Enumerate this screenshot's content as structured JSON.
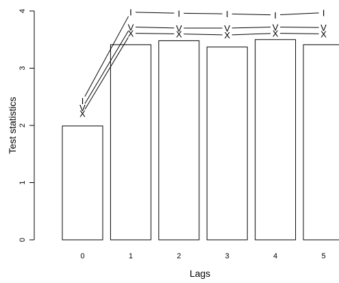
{
  "chart_data": {
    "type": "bar",
    "title": "",
    "xlabel": "Lags",
    "ylabel": "Test statistics",
    "categories": [
      "0",
      "1",
      "2",
      "3",
      "4",
      "5"
    ],
    "values": [
      1.99,
      3.41,
      3.48,
      3.37,
      3.5,
      3.41
    ],
    "ylim": [
      0,
      4
    ],
    "yticks": [
      "0",
      "1",
      "2",
      "3",
      "4"
    ],
    "grid": false,
    "overlay_series": [
      {
        "marker": "I",
        "values": [
          2.43,
          3.98,
          3.96,
          3.95,
          3.93,
          3.97
        ]
      },
      {
        "marker": "V",
        "values": [
          2.31,
          3.72,
          3.7,
          3.7,
          3.72,
          3.71
        ]
      },
      {
        "marker": "X",
        "values": [
          2.21,
          3.61,
          3.6,
          3.58,
          3.61,
          3.6
        ]
      }
    ]
  }
}
